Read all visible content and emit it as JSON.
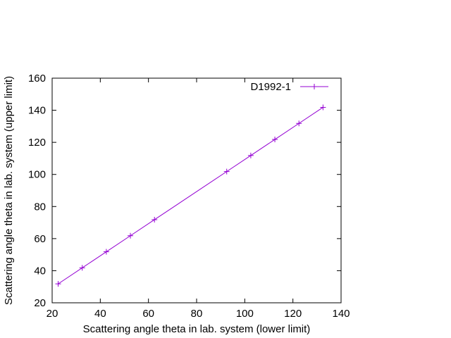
{
  "chart_data": {
    "type": "line",
    "xlabel": "Scattering angle theta in lab. system (lower limit)",
    "ylabel": "Scattering angle theta in lab. system (upper limit)",
    "xlim": [
      20,
      140
    ],
    "ylim": [
      20,
      160
    ],
    "x_ticks": [
      20,
      40,
      60,
      80,
      100,
      120,
      140
    ],
    "y_ticks": [
      20,
      40,
      60,
      80,
      100,
      120,
      140,
      160
    ],
    "grid": false,
    "legend_position": "top-right",
    "series": [
      {
        "name": "D1992-1",
        "color": "#9400d3",
        "marker": "plus",
        "x": [
          22.5,
          32.5,
          42.5,
          52.5,
          62.5,
          92.5,
          102.5,
          112.5,
          122.5,
          132.5
        ],
        "y": [
          31.8,
          41.8,
          51.8,
          61.8,
          71.8,
          101.8,
          111.8,
          121.8,
          131.8,
          141.8
        ]
      }
    ]
  }
}
